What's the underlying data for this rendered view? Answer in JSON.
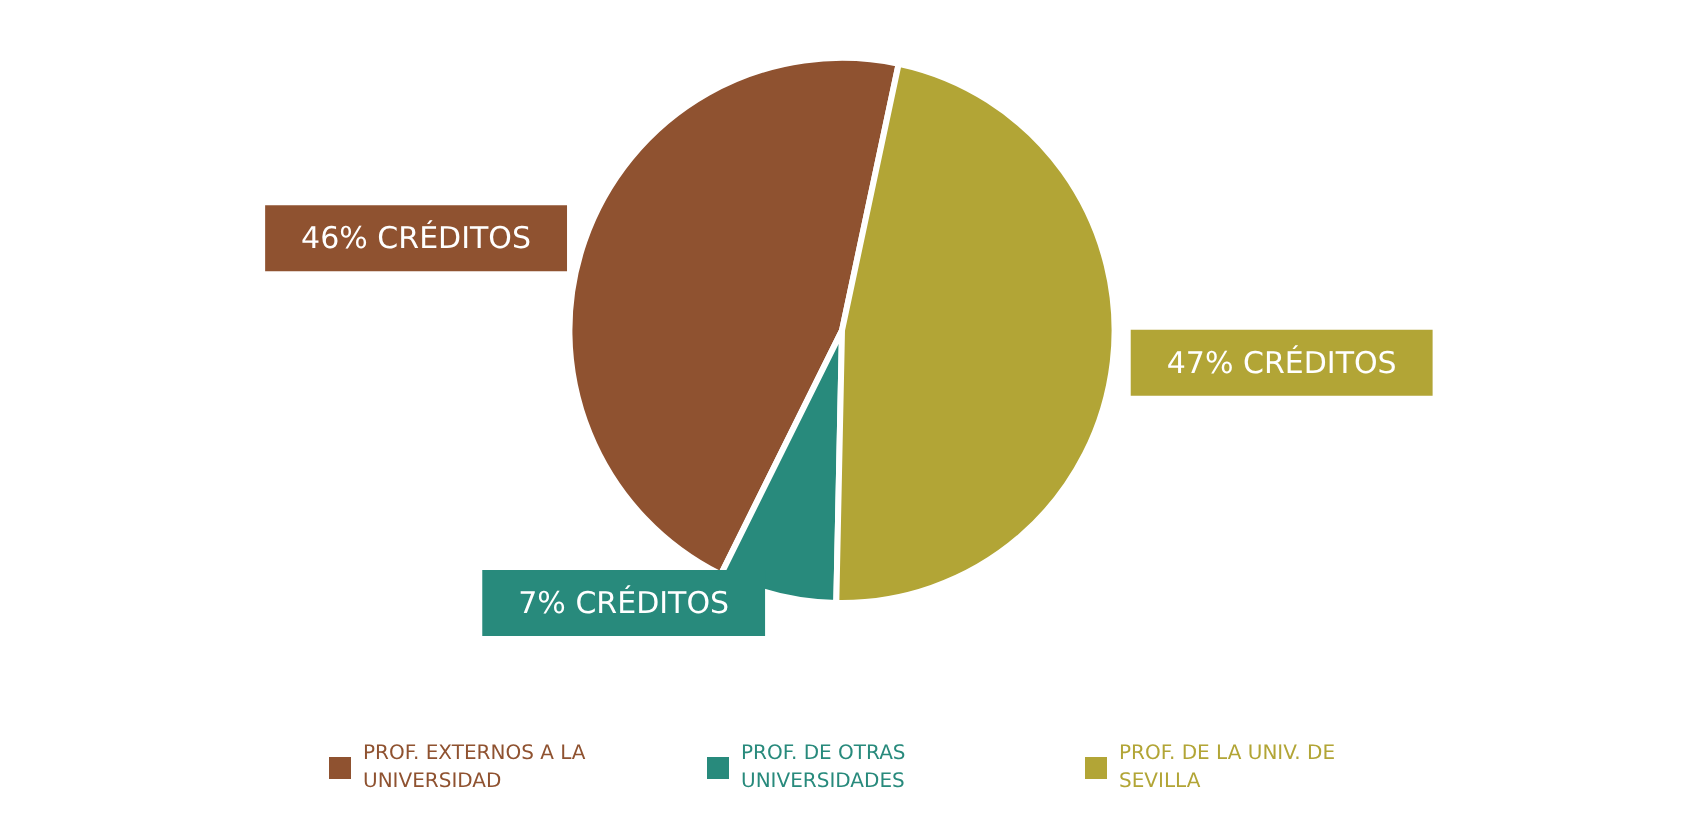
{
  "chart_data": {
    "type": "pie",
    "categories": [
      "PROF. EXTERNOS A LA UNIVERSIDAD",
      "PROF. DE OTRAS UNIVERSIDADES",
      "PROF. DE LA UNIV. DE SEVILLA"
    ],
    "values": [
      46,
      7,
      47
    ],
    "colors": [
      "#8f5230",
      "#288a7c",
      "#b2a536"
    ],
    "value_labels": [
      "46% CRÉDITOS",
      "7% CRÉDITOS",
      "47% CRÉDITOS"
    ],
    "legend": "bottom"
  }
}
